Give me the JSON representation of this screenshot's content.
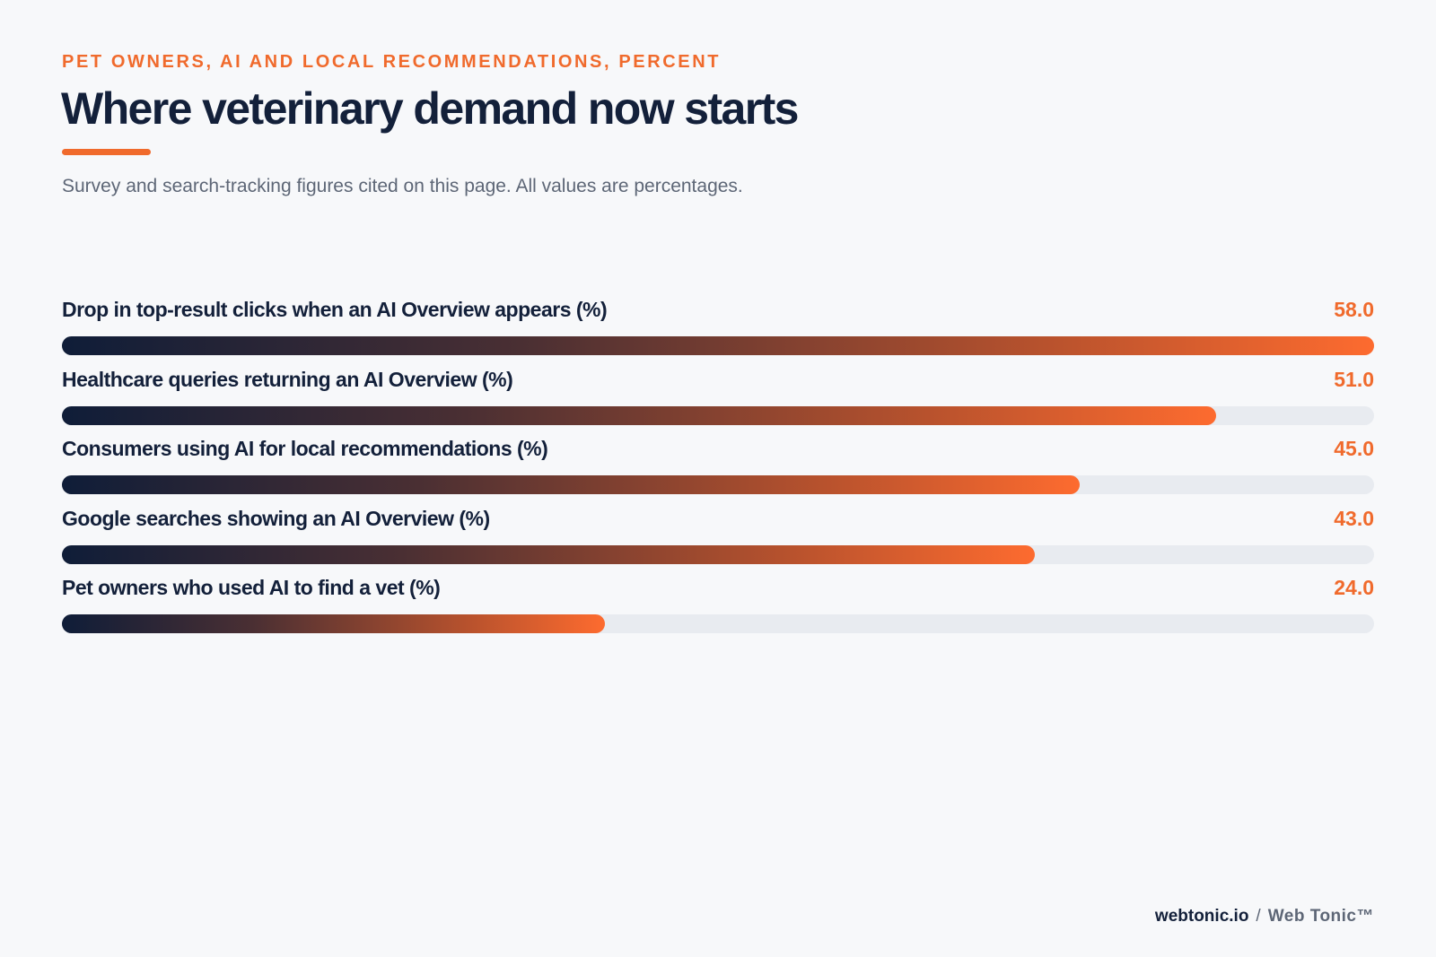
{
  "header": {
    "eyebrow": "PET OWNERS, AI AND LOCAL RECOMMENDATIONS, PERCENT",
    "title": "Where veterinary demand now starts",
    "subtitle": "Survey and search-tracking figures cited on this page. All values are percentages."
  },
  "footer": {
    "domain": "webtonic.io",
    "separator": "/",
    "brand": "Web Tonic™"
  },
  "colors": {
    "accent": "#f06a2c",
    "navy": "#13203a",
    "track": "#e8ebf0",
    "background": "#f7f8fa"
  },
  "chart_data": {
    "type": "bar",
    "orientation": "horizontal",
    "categories": [
      "Drop in top-result clicks when an AI Overview appears (%)",
      "Healthcare queries returning an AI Overview (%)",
      "Consumers using AI for local recommendations (%)",
      "Google searches showing an AI Overview (%)",
      "Pet owners who used AI to find a vet (%)"
    ],
    "values": [
      58.0,
      51.0,
      45.0,
      43.0,
      24.0
    ],
    "value_labels": [
      "58.0",
      "51.0",
      "45.0",
      "43.0",
      "24.0"
    ],
    "xlim": [
      0,
      58
    ],
    "grid": false,
    "legend": "none"
  }
}
